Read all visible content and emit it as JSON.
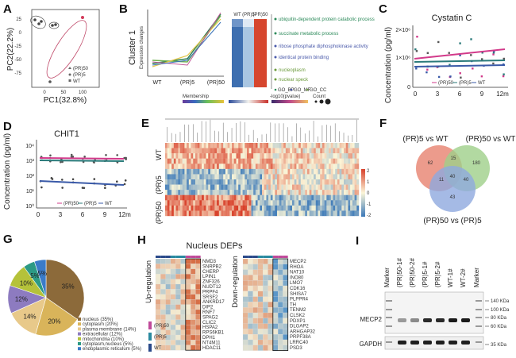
{
  "panels": {
    "A": "A",
    "B": "B",
    "C": "C",
    "D": "D",
    "E": "E",
    "F": "F",
    "G": "G",
    "H": "H",
    "I": "I"
  },
  "panel_a": {
    "xlabel": "PC1(32.8%)",
    "ylabel": "PC2(22.2%)",
    "xticks": [
      "0",
      "50",
      "100"
    ],
    "yticks": [
      "25",
      "0",
      "-25",
      "-50",
      "-75"
    ],
    "legend": [
      "(PR)50",
      "(PR)5",
      "WT"
    ]
  },
  "panel_b": {
    "ylabel": "Cluster 1",
    "ylabel2": "Expression changes",
    "xticks": [
      "WT",
      "(PR)5",
      "(PR)50"
    ],
    "heat_cols": [
      "WT",
      "(PR)5",
      "(PR)50"
    ],
    "go_terms": [
      "ubiquitin-dependent protein catabolic process",
      "succinate metabolic process",
      "ribose phosphate diphosphokinase activity",
      "identical protein binding",
      "nucleoplasm",
      "nuclear speck"
    ],
    "legend_go": [
      "GO_BP",
      "GO_MF",
      "GO_CC"
    ],
    "scale_labels": [
      "Membership",
      "-log10(pvalue)",
      "Count"
    ]
  },
  "panel_c": {
    "title": "Cystatin C",
    "ylabel": "Concentration (pg/ml)",
    "yticks": [
      "2×10⁶",
      "1×10⁶",
      "0"
    ],
    "xticks": [
      "0",
      "3",
      "6",
      "9",
      "12m"
    ],
    "legend": [
      "(PR)50",
      "(PR)5",
      "WT"
    ]
  },
  "panel_d": {
    "title": "CHIT1",
    "ylabel": "Concentration (pg/ml)",
    "yticks": [
      "10⁴",
      "10³",
      "10²",
      "10¹",
      "10⁰"
    ],
    "xticks": [
      "0",
      "3",
      "6",
      "9",
      "12m"
    ],
    "legend": [
      "(PR)50",
      "(PR)5",
      "WT"
    ]
  },
  "panel_e": {
    "rows": [
      "WT",
      "(PR)5",
      "(PR)50"
    ],
    "scale": [
      "2",
      "1",
      "0",
      "-1",
      "-2"
    ]
  },
  "panel_f": {
    "set1": "(PR)5 vs WT",
    "set2": "(PR)50 vs WT",
    "set3": "(PR)50 vs (PR)5",
    "values": [
      "62",
      "15",
      "180",
      "11",
      "40",
      "40",
      "43"
    ],
    "colors": {
      "set1": "#e98a78",
      "set2": "#9fd08a",
      "set3": "#8fa9de"
    }
  },
  "panel_g": {
    "legend": [
      "nucleus (35%)",
      "cytoplasm (20%)",
      "plasma membrane (14%)",
      "extracellular (12%)",
      "mitochondria (10%)",
      "cytoplasm,nucleus (5%)",
      "endoplasmic reticulum (5%)"
    ]
  },
  "chart_data": {
    "type": "pie",
    "categories": [
      "nucleus",
      "cytoplasm",
      "plasma membrane",
      "extracellular",
      "mitochondria",
      "cytoplasm,nucleus",
      "endoplasmic reticulum"
    ],
    "values": [
      35,
      20,
      14,
      12,
      10,
      5,
      5
    ],
    "data_labels": [
      "35%",
      "20%",
      "14%",
      "12%",
      "10%",
      "5%",
      "5%"
    ],
    "colors": [
      "#8c6a3a",
      "#d9b45a",
      "#e8c98a",
      "#8d7bc0",
      "#b5c23a",
      "#2c9a85",
      "#3a7bc8"
    ]
  },
  "panel_h": {
    "title": "Nucleus DEPs",
    "up_label": "Up-regulation",
    "down_label": "Down-regulation",
    "up_genes": [
      "NMD3",
      "SNRPB2",
      "CHERP",
      "LPIN1",
      "ZNF326",
      "NUDT12",
      "PRPF4",
      "SRSF2",
      "ANKRD17",
      "DIP2",
      "RNF7",
      "SPAG2",
      "CLIC2",
      "HSPA2",
      "RPS6KB1",
      "DPH1",
      "NT4M11",
      "HDAC11"
    ],
    "down_genes": [
      "MECP2",
      "RHOA",
      "NAT10",
      "INO80",
      "LMO7",
      "CDK16",
      "SHISA7",
      "PLPPR4",
      "TH",
      "TENM2",
      "CLSK2",
      "PDXP1",
      "DLGAP2",
      "ARHGAP32",
      "PRPF38A",
      "LRRC40",
      "PSD3"
    ],
    "group_legend": [
      "(PR)50",
      "(PR)5",
      "WT"
    ]
  },
  "panel_i": {
    "lanes": [
      "Marker",
      "(PR)50-1#",
      "(PR)50-2#",
      "(PR)5-1#",
      "(PR)5-2#",
      "WT-1#",
      "WT-2#",
      "Marker"
    ],
    "kdas": [
      "140 KDa",
      "100 KDa",
      "80 KDa",
      "60 KDa",
      "35 KDa"
    ],
    "bands": [
      "MECP2",
      "GAPDH"
    ]
  }
}
